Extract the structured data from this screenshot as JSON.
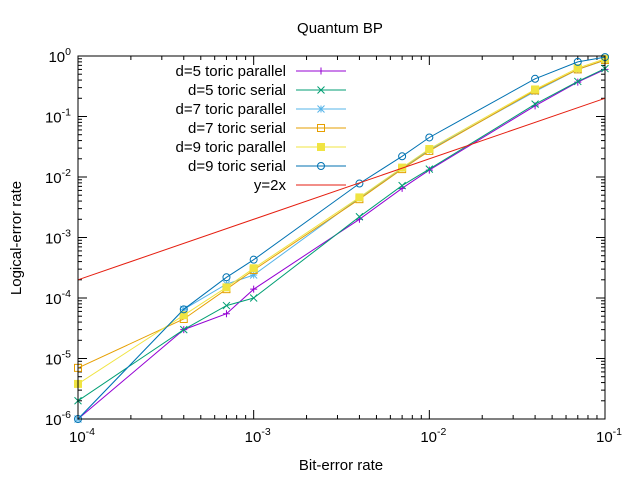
{
  "chart_data": {
    "type": "line",
    "title": "Quantum BP",
    "xlabel": "Bit-error rate",
    "ylabel": "Logical-error rate",
    "xscale": "log",
    "yscale": "log",
    "xlim": [
      0.0001,
      0.1
    ],
    "ylim": [
      1e-06,
      1
    ],
    "grid": false,
    "legend_position": "top-left",
    "x_ticks": [
      {
        "base": "10",
        "exp": "-4",
        "value": 0.0001
      },
      {
        "base": "10",
        "exp": "-3",
        "value": 0.001
      },
      {
        "base": "10",
        "exp": "-2",
        "value": 0.01
      },
      {
        "base": "10",
        "exp": "-1",
        "value": 0.1
      }
    ],
    "y_ticks": [
      {
        "base": "10",
        "exp": "-6",
        "value": 1e-06
      },
      {
        "base": "10",
        "exp": "-5",
        "value": 1e-05
      },
      {
        "base": "10",
        "exp": "-4",
        "value": 0.0001
      },
      {
        "base": "10",
        "exp": "-3",
        "value": 0.001
      },
      {
        "base": "10",
        "exp": "-2",
        "value": 0.01
      },
      {
        "base": "10",
        "exp": "-1",
        "value": 0.1
      },
      {
        "base": "10",
        "exp": "0",
        "value": 1
      }
    ],
    "series": [
      {
        "name": "d=5 toric parallel",
        "color": "#9400d3",
        "marker": "plus",
        "x": [
          0.0001,
          0.0004,
          0.0007,
          0.001,
          0.004,
          0.007,
          0.01,
          0.04,
          0.07,
          0.1
        ],
        "y": [
          1e-06,
          3e-05,
          5.5e-05,
          0.00014,
          0.002,
          0.0065,
          0.013,
          0.15,
          0.37,
          0.6
        ]
      },
      {
        "name": "d=5 toric serial",
        "color": "#009e73",
        "marker": "cross",
        "x": [
          0.0001,
          0.0004,
          0.0007,
          0.001,
          0.004,
          0.007,
          0.01,
          0.04,
          0.07,
          0.1
        ],
        "y": [
          2e-06,
          3e-05,
          7.5e-05,
          0.0001,
          0.0022,
          0.0072,
          0.0135,
          0.16,
          0.38,
          0.62
        ]
      },
      {
        "name": "d=7 toric parallel",
        "color": "#56b4e9",
        "marker": "asterisk",
        "x": [
          0.0001,
          0.0004,
          0.0007,
          0.001,
          0.004,
          0.007,
          0.01,
          0.04,
          0.07,
          0.1
        ],
        "y": [
          1e-06,
          6.5e-05,
          0.00017,
          0.00024,
          0.0045,
          0.014,
          0.028,
          0.26,
          0.6,
          0.85
        ]
      },
      {
        "name": "d=7 toric serial",
        "color": "#e69f00",
        "marker": "square",
        "x": [
          0.0001,
          0.0004,
          0.0007,
          0.001,
          0.004,
          0.007,
          0.01,
          0.04,
          0.07,
          0.1
        ],
        "y": [
          7e-06,
          4.5e-05,
          0.00014,
          0.00029,
          0.0043,
          0.0135,
          0.027,
          0.27,
          0.6,
          0.86
        ]
      },
      {
        "name": "d=9 toric parallel",
        "color": "#f0e442",
        "marker": "filled-square",
        "x": [
          0.0001,
          0.0004,
          0.0007,
          0.001,
          0.004,
          0.007,
          0.01,
          0.04,
          0.07,
          0.1
        ],
        "y": [
          3.8e-06,
          5.2e-05,
          0.00015,
          0.00031,
          0.0046,
          0.0143,
          0.029,
          0.28,
          0.63,
          0.9
        ]
      },
      {
        "name": "d=9 toric serial",
        "color": "#0072b2",
        "marker": "circle",
        "x": [
          0.0001,
          0.0004,
          0.0007,
          0.001,
          0.004,
          0.007,
          0.01,
          0.04,
          0.07,
          0.1
        ],
        "y": [
          1e-06,
          6.5e-05,
          0.00022,
          0.00043,
          0.0078,
          0.022,
          0.045,
          0.42,
          0.8,
          0.96
        ]
      },
      {
        "name": "y=2x",
        "color": "#e51e10",
        "marker": "none",
        "x": [
          0.0001,
          0.1
        ],
        "y": [
          0.0002,
          0.2
        ]
      }
    ]
  }
}
